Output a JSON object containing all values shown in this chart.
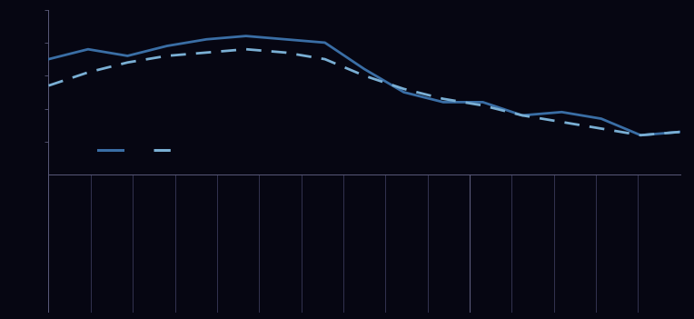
{
  "solid_line": [
    6.5,
    6.8,
    6.6,
    6.9,
    7.1,
    7.2,
    7.1,
    7.0,
    6.2,
    5.5,
    5.2,
    5.2,
    4.8,
    4.9,
    4.7,
    4.2,
    4.3
  ],
  "dashed_line": [
    5.7,
    6.1,
    6.4,
    6.6,
    6.7,
    6.8,
    6.7,
    6.5,
    6.0,
    5.6,
    5.3,
    5.1,
    4.8,
    4.6,
    4.4,
    4.2,
    4.3
  ],
  "solid_color": "#3a6ea5",
  "dashed_color": "#7aafd4",
  "background_color": "#060612",
  "tick_line_color": "#3a3a5a",
  "axis_color": "#5a5a7a",
  "ylim": [
    3.0,
    8.0
  ],
  "solid_linewidth": 2.0,
  "dashed_linewidth": 2.0,
  "n_xtick_lines": 15,
  "sep_line_index": 10
}
